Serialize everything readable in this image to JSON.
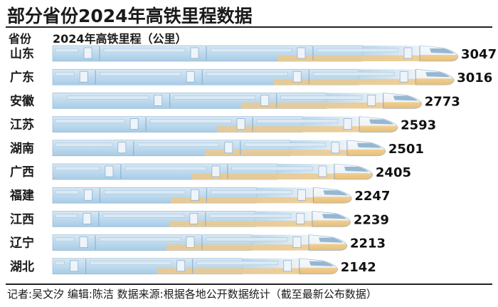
{
  "chart_data": {
    "type": "bar",
    "orientation": "horizontal",
    "title": "部分省份2024年高铁里程数据",
    "category_header": "省份",
    "value_header": "2024年高铁里程（公里）",
    "categories": [
      "山东",
      "广东",
      "安徽",
      "江苏",
      "湖南",
      "广西",
      "福建",
      "江西",
      "辽宁",
      "湖北"
    ],
    "values": [
      3047,
      3016,
      2773,
      2593,
      2501,
      2405,
      2247,
      2239,
      2213,
      2142
    ],
    "bar_style": "high-speed-train",
    "xlim": [
      0,
      3047
    ]
  },
  "footer": "记者:吴文汐  编辑:陈洁  数据来源:根据各地公开数据统计（截至最新公布数据）",
  "colors": {
    "train_blue": "#bcd9ee",
    "train_blue_dark": "#9cc4e2",
    "train_gold": "#eec98b",
    "train_white": "#f4f7fa",
    "window": "#dbe9f4",
    "outline": "#6e8fa8",
    "rule": "#222222"
  }
}
